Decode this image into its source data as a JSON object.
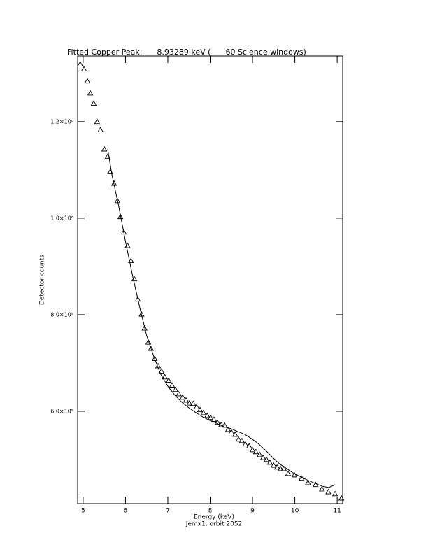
{
  "chart_data": {
    "type": "scatter",
    "title": "Fitted Copper Peak:      8.93289 keV (      60 Science windows)",
    "x_label": "Energy (keV)",
    "footer": "Jemx1: orbit 2052",
    "y_label": "Detector counts",
    "xlim": [
      4.87,
      11.13
    ],
    "xticks": [
      5,
      6,
      7,
      8,
      9,
      10,
      11
    ],
    "ylim": [
      408700,
      1336000
    ],
    "yticks": [
      {
        "value": 600000,
        "label": "6.0×10⁵"
      },
      {
        "value": 800000,
        "label": "8.0×10⁵"
      },
      {
        "value": 1000000,
        "label": "1.0×10⁶"
      },
      {
        "value": 1200000,
        "label": "1.2×10⁶"
      }
    ],
    "series": [
      {
        "type": "scatter",
        "marker": "triangle",
        "color": "#000000",
        "x": [
          4.93,
          5.02,
          5.1,
          5.17,
          5.25,
          5.33,
          5.41,
          5.5,
          5.58,
          5.64,
          5.73,
          5.81,
          5.88,
          5.96,
          6.05,
          6.13,
          6.21,
          6.29,
          6.38,
          6.45,
          6.54,
          6.6,
          6.69,
          6.77,
          6.85,
          6.93,
          7.02,
          7.1,
          7.18,
          7.26,
          7.35,
          7.43,
          7.51,
          7.6,
          7.68,
          7.76,
          7.84,
          7.93,
          8.01,
          8.09,
          8.17,
          8.26,
          8.34,
          8.42,
          8.5,
          8.59,
          8.67,
          8.75,
          8.83,
          8.92,
          9.0,
          9.08,
          9.17,
          9.25,
          9.33,
          9.41,
          9.5,
          9.58,
          9.66,
          9.74,
          9.84,
          9.99,
          10.16,
          10.31,
          10.49,
          10.64,
          10.79,
          10.95,
          11.1
        ],
        "values": [
          1319000,
          1309000,
          1284000,
          1259000,
          1238000,
          1200000,
          1183000,
          1143000,
          1128000,
          1096000,
          1072000,
          1036000,
          1003000,
          971000,
          943000,
          912000,
          874000,
          832000,
          801000,
          772000,
          743000,
          730000,
          709000,
          694000,
          683000,
          671000,
          664000,
          654000,
          645000,
          636000,
          629000,
          623000,
          617000,
          616000,
          609000,
          603000,
          597000,
          591000,
          587000,
          583000,
          577000,
          572000,
          571000,
          562000,
          557000,
          552000,
          542000,
          539000,
          532000,
          528000,
          520000,
          516000,
          510000,
          504000,
          500000,
          494000,
          488000,
          484000,
          481000,
          481000,
          471000,
          468000,
          461000,
          452000,
          448000,
          439000,
          433000,
          429000,
          420000
        ]
      },
      {
        "type": "line",
        "color": "#000000",
        "x": [
          5.58,
          5.68,
          5.84,
          6.0,
          6.17,
          6.34,
          6.5,
          6.67,
          6.83,
          7.0,
          7.17,
          7.33,
          7.5,
          7.67,
          7.83,
          7.99,
          8.16,
          8.32,
          8.49,
          8.65,
          8.82,
          8.98,
          9.15,
          9.31,
          9.48,
          9.64,
          9.81,
          9.98,
          10.14,
          10.31,
          10.47,
          10.64,
          10.8,
          10.95
        ],
        "values": [
          1143000,
          1090000,
          1025000,
          952000,
          880000,
          814000,
          757000,
          713000,
          677000,
          652000,
          633000,
          619000,
          607000,
          597000,
          588000,
          581000,
          575000,
          568000,
          564000,
          558000,
          552000,
          543000,
          532000,
          519000,
          504000,
          491000,
          481000,
          471000,
          464000,
          457000,
          451000,
          445000,
          442000,
          448000
        ]
      }
    ]
  }
}
